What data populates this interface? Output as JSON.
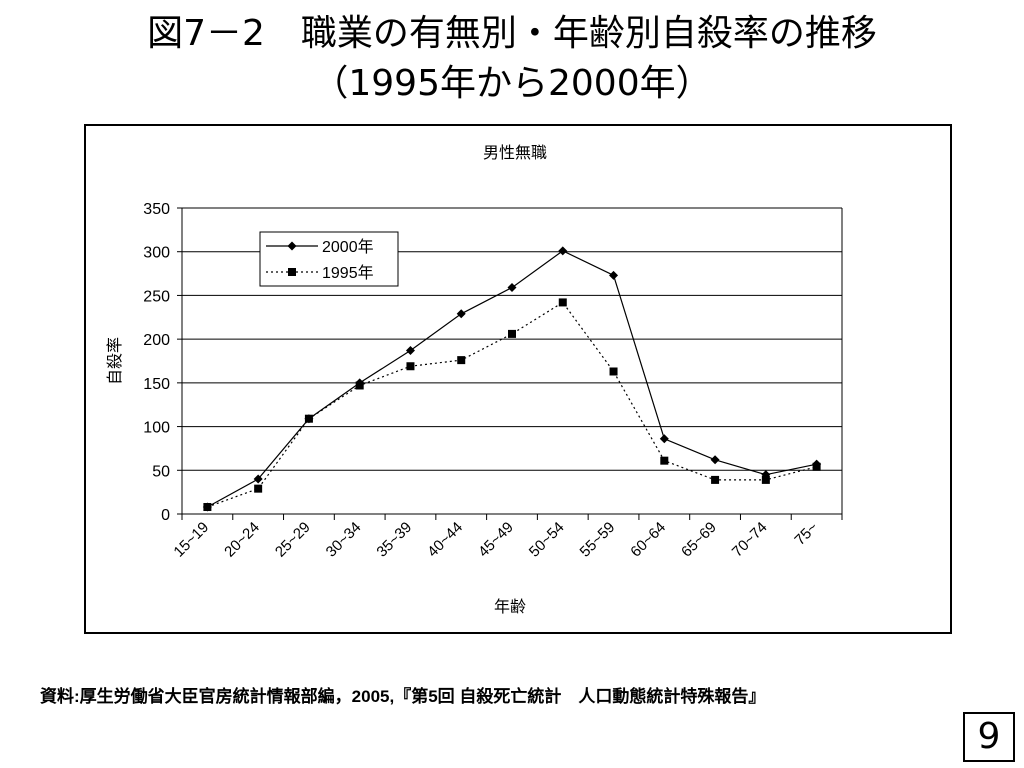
{
  "slide": {
    "title_line1": "図7－2　職業の有無別・年齢別自殺率の推移",
    "title_line2": "（1995年から2000年）",
    "source": "資料:厚生労働省大臣官房統計情報部編，2005,『第5回 自殺死亡統計　人口動態統計特殊報告』",
    "page_number": "9"
  },
  "chart_data": {
    "type": "line",
    "title": "男性無職",
    "xlabel": "年齢",
    "ylabel": "自殺率",
    "ylim": [
      0,
      350
    ],
    "yticks": [
      "0",
      "50",
      "100",
      "150",
      "200",
      "250",
      "300",
      "350"
    ],
    "grid": true,
    "legend_position": "top-left",
    "categories": [
      "15~19",
      "20~24",
      "25~29",
      "30~34",
      "35~39",
      "40~44",
      "45~49",
      "50~54",
      "55~59",
      "60~64",
      "65~69",
      "70~74",
      "75~"
    ],
    "series": [
      {
        "name": "2000年",
        "marker": "diamond",
        "line": "solid",
        "color": "#000000",
        "values": [
          8,
          40,
          109,
          150,
          187,
          229,
          259,
          301,
          273,
          86,
          62,
          45,
          57
        ]
      },
      {
        "name": "1995年",
        "marker": "square",
        "line": "dotted",
        "color": "#000000",
        "values": [
          8,
          29,
          109,
          147,
          169,
          176,
          206,
          242,
          163,
          61,
          39,
          39,
          54
        ]
      }
    ]
  }
}
